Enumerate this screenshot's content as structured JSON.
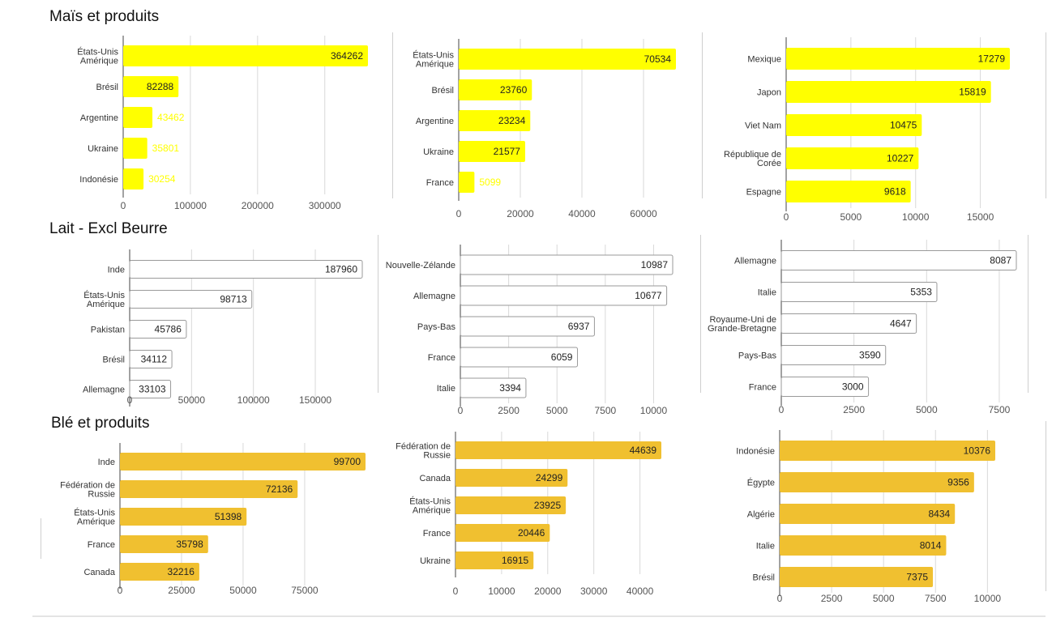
{
  "page": {
    "sections": [
      {
        "title": "Maïs et produits"
      },
      {
        "title": "Lait - Excl Beurre"
      },
      {
        "title": "Blé et produits"
      }
    ]
  },
  "colors": {
    "mais": "#ffff00",
    "lait": "#ffffff",
    "ble": "#f0c030",
    "bar_outline": "#9a9a9a",
    "grid": "#d9d9d9",
    "axis": "#444444"
  },
  "chart_data": [
    {
      "type": "bar",
      "orientation": "horizontal",
      "section": "Maïs et produits",
      "categories": [
        "États-Unis Amérique",
        "Brésil",
        "Argentine",
        "Ukraine",
        "Indonésie"
      ],
      "values": [
        364262,
        82288,
        43462,
        35801,
        30254
      ],
      "xticks": [
        0,
        100000,
        200000,
        300000
      ],
      "xlim": [
        0,
        364262
      ],
      "grid": true
    },
    {
      "type": "bar",
      "orientation": "horizontal",
      "section": "Maïs et produits",
      "categories": [
        "États-Unis Amérique",
        "Brésil",
        "Argentine",
        "Ukraine",
        "France"
      ],
      "values": [
        70534,
        23760,
        23234,
        21577,
        5099
      ],
      "xticks": [
        0,
        20000,
        40000,
        60000
      ],
      "xlim": [
        0,
        70534
      ],
      "grid": true
    },
    {
      "type": "bar",
      "orientation": "horizontal",
      "section": "Maïs et produits",
      "categories": [
        "Mexique",
        "Japon",
        "Viet Nam",
        "République de Corée",
        "Espagne"
      ],
      "values": [
        17279,
        15819,
        10475,
        10227,
        9618
      ],
      "xticks": [
        0,
        5000,
        10000,
        15000
      ],
      "xlim": [
        0,
        17279
      ],
      "grid": true
    },
    {
      "type": "bar",
      "orientation": "horizontal",
      "section": "Lait - Excl Beurre",
      "categories": [
        "Inde",
        "États-Unis Amérique",
        "Pakistan",
        "Brésil",
        "Allemagne"
      ],
      "values": [
        187960,
        98713,
        45786,
        34112,
        33103
      ],
      "xticks": [
        0,
        50000,
        100000,
        150000
      ],
      "xlim": [
        0,
        187960
      ],
      "grid": true
    },
    {
      "type": "bar",
      "orientation": "horizontal",
      "section": "Lait - Excl Beurre",
      "categories": [
        "Nouvelle-Zélande",
        "Allemagne",
        "Pays-Bas",
        "France",
        "Italie"
      ],
      "values": [
        10987,
        10677,
        6937,
        6059,
        3394
      ],
      "xticks": [
        0,
        2500,
        5000,
        7500,
        10000
      ],
      "xlim": [
        0,
        10987
      ],
      "grid": true
    },
    {
      "type": "bar",
      "orientation": "horizontal",
      "section": "Lait - Excl Beurre",
      "categories": [
        "Allemagne",
        "Italie",
        "Royaume-Uni de Grande-Bretagne",
        "Pays-Bas",
        "France"
      ],
      "values": [
        8087,
        5353,
        4647,
        3590,
        3000
      ],
      "xticks": [
        0,
        2500,
        5000,
        7500
      ],
      "xlim": [
        0,
        8087
      ],
      "grid": true
    },
    {
      "type": "bar",
      "orientation": "horizontal",
      "section": "Blé et produits",
      "categories": [
        "Inde",
        "Fédération de Russie",
        "États-Unis Amérique",
        "France",
        "Canada"
      ],
      "values": [
        99700,
        72136,
        51398,
        35798,
        32216
      ],
      "xticks": [
        0,
        25000,
        50000,
        75000
      ],
      "xlim": [
        0,
        99700
      ],
      "grid": true
    },
    {
      "type": "bar",
      "orientation": "horizontal",
      "section": "Blé et produits",
      "categories": [
        "Fédération de Russie",
        "Canada",
        "États-Unis Amérique",
        "France",
        "Ukraine"
      ],
      "values": [
        44639,
        24299,
        23925,
        20446,
        16915
      ],
      "xticks": [
        0,
        10000,
        20000,
        30000,
        40000
      ],
      "xlim": [
        0,
        44639
      ],
      "grid": true
    },
    {
      "type": "bar",
      "orientation": "horizontal",
      "section": "Blé et produits",
      "categories": [
        "Indonésie",
        "Égypte",
        "Algérie",
        "Italie",
        "Brésil"
      ],
      "values": [
        10376,
        9356,
        8434,
        8014,
        7375
      ],
      "xticks": [
        0,
        2500,
        5000,
        7500,
        10000
      ],
      "xlim": [
        0,
        10376
      ],
      "grid": true
    }
  ]
}
